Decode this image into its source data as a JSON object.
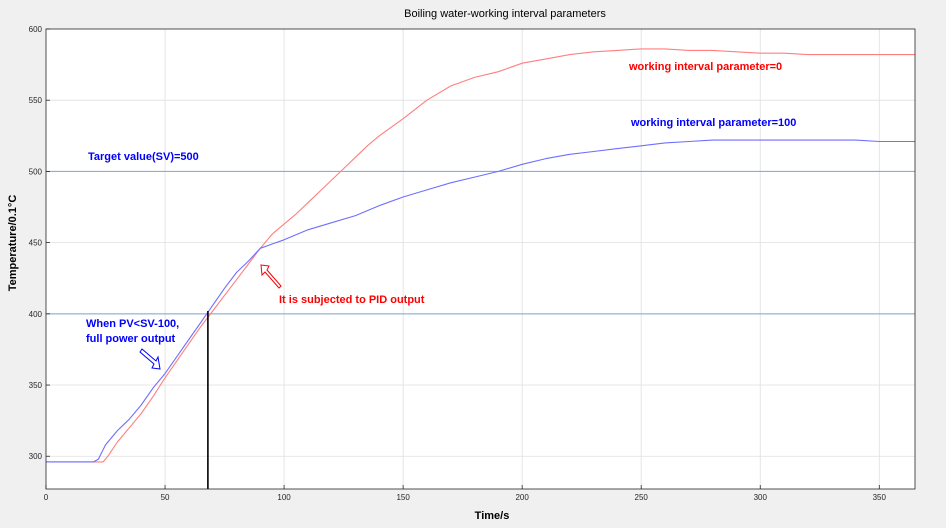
{
  "chart_data": {
    "type": "line",
    "title": "Boiling water-working interval parameters",
    "xlabel": "Time/s",
    "ylabel": "Temperature/0.1°C",
    "xlim": [
      0,
      365
    ],
    "ylim": [
      277,
      600
    ],
    "xticks": [
      0,
      50,
      100,
      150,
      200,
      250,
      300,
      350
    ],
    "yticks": [
      300,
      350,
      400,
      450,
      500,
      550,
      600
    ],
    "grid": true,
    "colors": {
      "red": "#ff0000",
      "blue": "#0000ff",
      "red_line": "#ff7f7f",
      "blue_line": "#6f6fff",
      "ref_line": "#7ca8cf",
      "marker": "#000000"
    },
    "series": [
      {
        "name": "working interval parameter=0",
        "color": "#ff7f7f",
        "x": [
          0,
          10,
          20,
          24,
          26,
          30,
          35,
          40,
          45,
          50,
          55,
          60,
          65,
          70,
          75,
          80,
          85,
          90,
          95,
          100,
          105,
          110,
          115,
          120,
          125,
          130,
          135,
          140,
          150,
          160,
          170,
          180,
          190,
          200,
          210,
          220,
          230,
          240,
          250,
          260,
          270,
          280,
          290,
          300,
          310,
          320,
          330,
          340,
          350,
          365
        ],
        "y": [
          296,
          296,
          296,
          296,
          300,
          310,
          320,
          330,
          342,
          355,
          367,
          379,
          391,
          402,
          413,
          424,
          435,
          446,
          456,
          463,
          470,
          478,
          486,
          494,
          502,
          510,
          518,
          525,
          537,
          550,
          560,
          566,
          570,
          576,
          579,
          582,
          584,
          585,
          586,
          586,
          585,
          585,
          584,
          583,
          583,
          582,
          582,
          582,
          582,
          582
        ]
      },
      {
        "name": "working interval parameter=100",
        "color": "#6f6fff",
        "x": [
          0,
          10,
          20,
          22,
          25,
          30,
          35,
          40,
          45,
          50,
          55,
          60,
          65,
          70,
          75,
          80,
          85,
          90,
          95,
          100,
          110,
          120,
          130,
          140,
          150,
          160,
          170,
          180,
          190,
          200,
          210,
          220,
          230,
          240,
          250,
          260,
          270,
          280,
          290,
          300,
          310,
          320,
          330,
          340,
          350,
          365
        ],
        "y": [
          296,
          296,
          296,
          298,
          308,
          318,
          326,
          336,
          348,
          358,
          370,
          382,
          394,
          406,
          418,
          429,
          437,
          446,
          449,
          452,
          459,
          464,
          469,
          476,
          482,
          487,
          492,
          496,
          500,
          505,
          509,
          512,
          514,
          516,
          518,
          520,
          521,
          522,
          522,
          522,
          522,
          522,
          522,
          522,
          521,
          521
        ]
      }
    ],
    "reference_lines": [
      500,
      400
    ],
    "vertical_marker": {
      "x": 68,
      "y_top": 402
    },
    "annotations": {
      "target": "Target value(SV)=500",
      "pid": "It is subjected to PID output",
      "full_power_1": "When PV<SV-100,",
      "full_power_2": "full power output",
      "legend_0": "working interval parameter=0",
      "legend_100": "working interval parameter=100"
    }
  }
}
